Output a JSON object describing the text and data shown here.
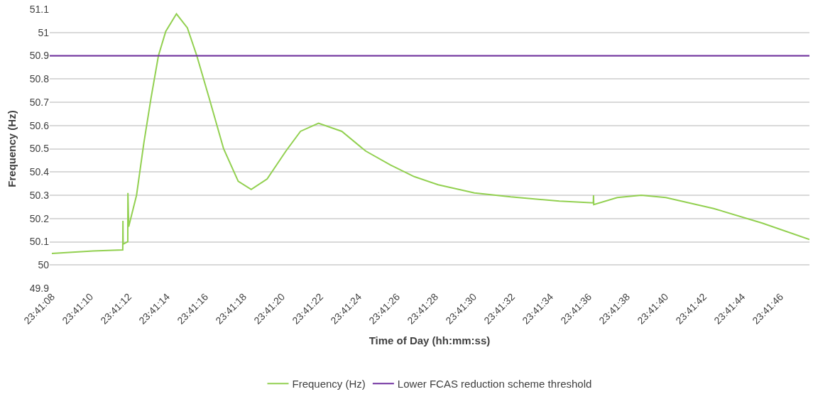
{
  "chart_data": {
    "type": "line",
    "xlabel": "Time of Day (hh:mm:ss)",
    "ylabel": "Frequency (Hz)",
    "x": [
      23.685556,
      23.686153,
      23.686583,
      23.686586,
      23.686589,
      23.686656,
      23.686658,
      23.686669,
      23.686783,
      23.686889,
      23.686994,
      23.6871,
      23.687206,
      23.687361,
      23.687519,
      23.687656,
      23.687833,
      23.688044,
      23.688256,
      23.688444,
      23.688675,
      23.688947,
      23.689158,
      23.689419,
      23.689756,
      23.690103,
      23.690461,
      23.690806,
      23.691153,
      23.691678,
      23.692203,
      23.692908,
      23.6934,
      23.693403,
      23.693406,
      23.693747,
      23.694094,
      23.69445,
      23.695144,
      23.695847,
      23.696531
    ],
    "series": [
      {
        "name": "Frequency (Hz)",
        "color": "#92d050",
        "values": [
          50.05,
          50.06,
          50.065,
          50.19,
          50.09,
          50.1,
          50.31,
          50.165,
          50.3,
          50.525,
          50.72,
          50.9,
          51.005,
          51.08,
          51.02,
          50.9,
          50.72,
          50.5,
          50.36,
          50.325,
          50.37,
          50.49,
          50.575,
          50.61,
          50.575,
          50.49,
          50.43,
          50.38,
          50.345,
          50.31,
          50.293,
          50.275,
          50.267,
          50.3,
          50.26,
          50.29,
          50.3,
          50.29,
          50.243,
          50.18,
          50.11
        ]
      }
    ],
    "ref_lines": [
      {
        "axis": "y",
        "value": 50.9,
        "label": "Lower FCAS reduction scheme threshold",
        "color": "#7030a0"
      }
    ],
    "xlim": [
      23.685525,
      23.696531
    ],
    "xticks": [
      {
        "value": 23.685556,
        "label": "23:41:08"
      },
      {
        "value": 23.686111,
        "label": "23:41:10"
      },
      {
        "value": 23.686667,
        "label": "23:41:12"
      },
      {
        "value": 23.687222,
        "label": "23:41:14"
      },
      {
        "value": 23.687778,
        "label": "23:41:16"
      },
      {
        "value": 23.688333,
        "label": "23:41:18"
      },
      {
        "value": 23.688889,
        "label": "23:41:20"
      },
      {
        "value": 23.689444,
        "label": "23:41:22"
      },
      {
        "value": 23.69,
        "label": "23:41:24"
      },
      {
        "value": 23.690556,
        "label": "23:41:26"
      },
      {
        "value": 23.691111,
        "label": "23:41:28"
      },
      {
        "value": 23.691667,
        "label": "23:41:30"
      },
      {
        "value": 23.692222,
        "label": "23:41:32"
      },
      {
        "value": 23.692778,
        "label": "23:41:34"
      },
      {
        "value": 23.693333,
        "label": "23:41:36"
      },
      {
        "value": 23.693889,
        "label": "23:41:38"
      },
      {
        "value": 23.694444,
        "label": "23:41:40"
      },
      {
        "value": 23.695,
        "label": "23:41:42"
      },
      {
        "value": 23.695556,
        "label": "23:41:44"
      },
      {
        "value": 23.696111,
        "label": "23:41:46"
      }
    ],
    "ylim": [
      49.9,
      51.1
    ],
    "yticks": [
      49.9,
      50,
      50.1,
      50.2,
      50.3,
      50.4,
      50.5,
      50.6,
      50.7,
      50.8,
      50.9,
      51,
      51.1
    ],
    "grid": "y",
    "legend": "bottom",
    "marker": "none",
    "line_style": "solid"
  }
}
